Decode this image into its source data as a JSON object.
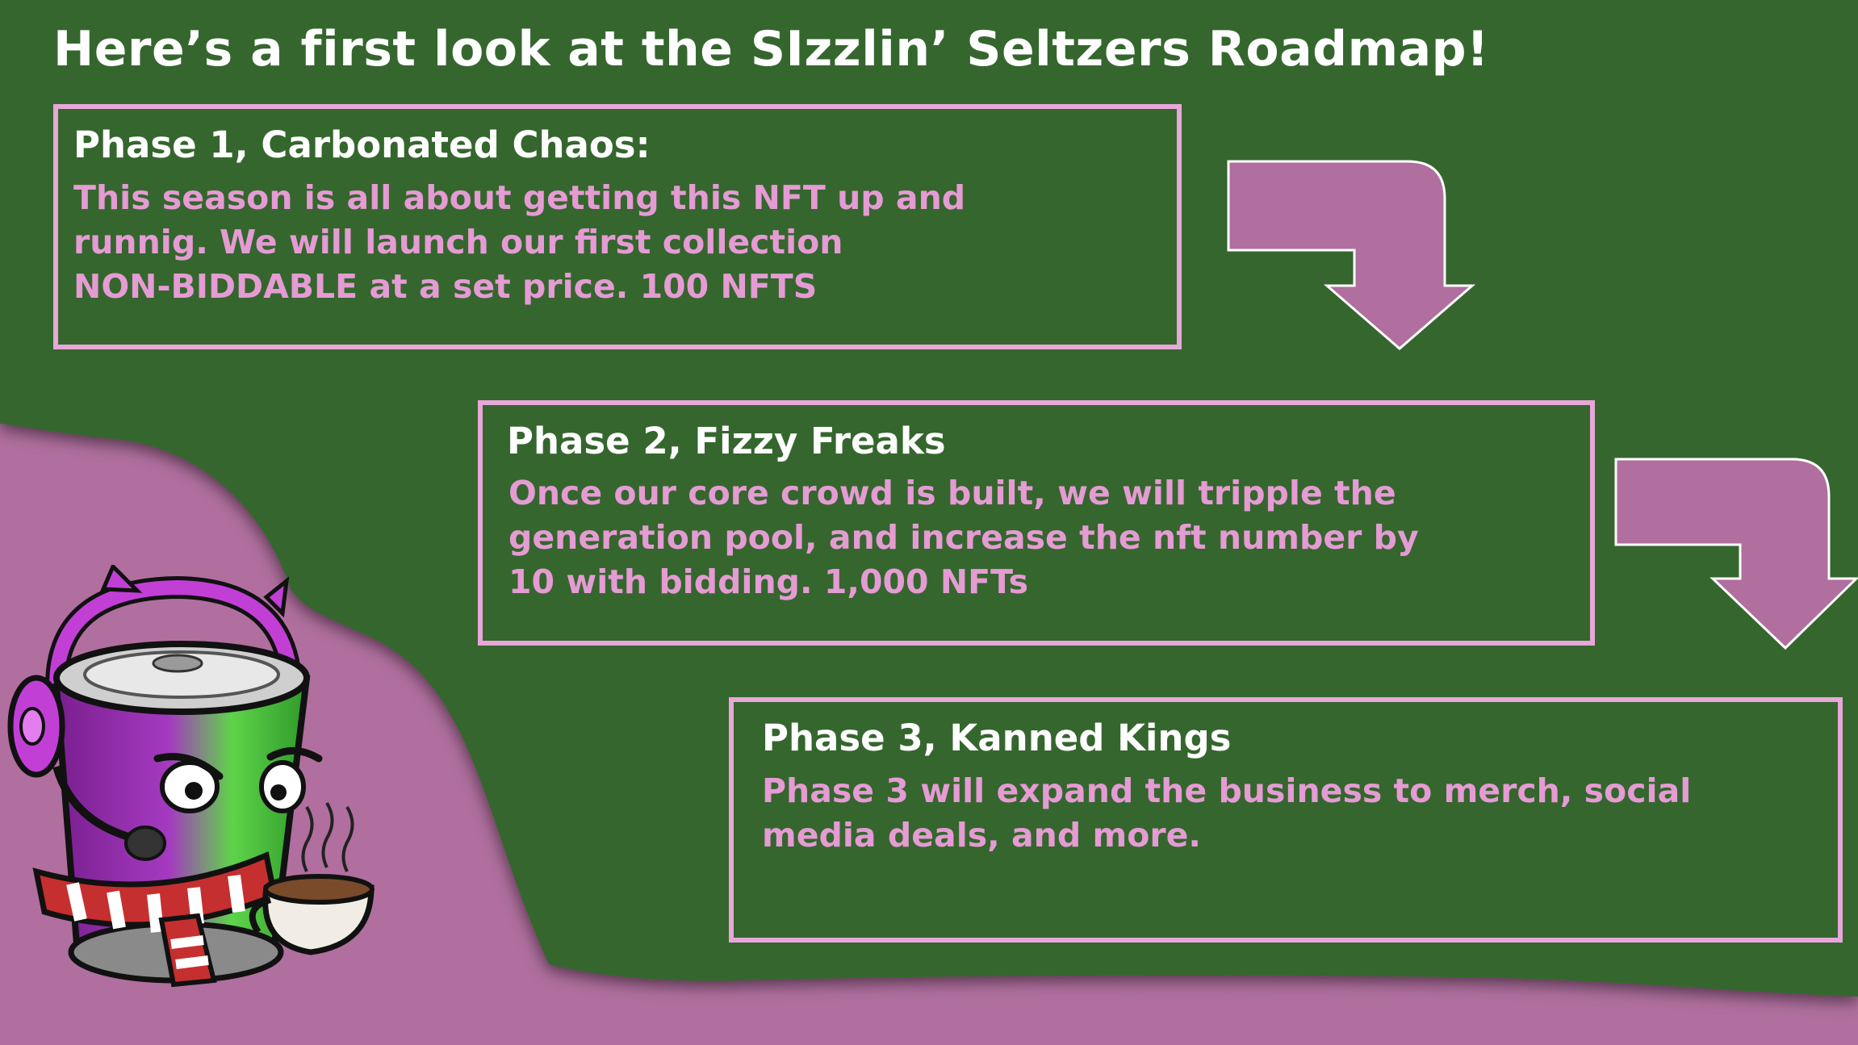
{
  "title": "Here’s a first look at the SIzzlin’ Seltzers Roadmap!",
  "colors": {
    "background_green": "#36662f",
    "accent_purple": "#b06f9e",
    "box_border_pink": "#e8a7d9",
    "text_pink": "#e59bd3",
    "title_white": "#ffffff"
  },
  "phases": [
    {
      "title": "Phase 1, Carbonated Chaos:",
      "text": "This season is all about getting this NFT up and\nrunnig.  We will launch our first collection\nNON-BIDDABLE at a set price.  100 NFTS"
    },
    {
      "title": "Phase 2, Fizzy Freaks",
      "text": "Once our core crowd is built, we will tripple the\ngeneration pool, and increase the nft number by\n10 with bidding.  1,000 NFTs"
    },
    {
      "title": "Phase 3, Kanned Kings",
      "text": "Phase 3 will expand the business to merch, social\nmedia deals, and more."
    }
  ],
  "icons": {
    "arrow": "arrow-down-right-icon",
    "mascot": "seltzer-can-mascot-icon"
  }
}
